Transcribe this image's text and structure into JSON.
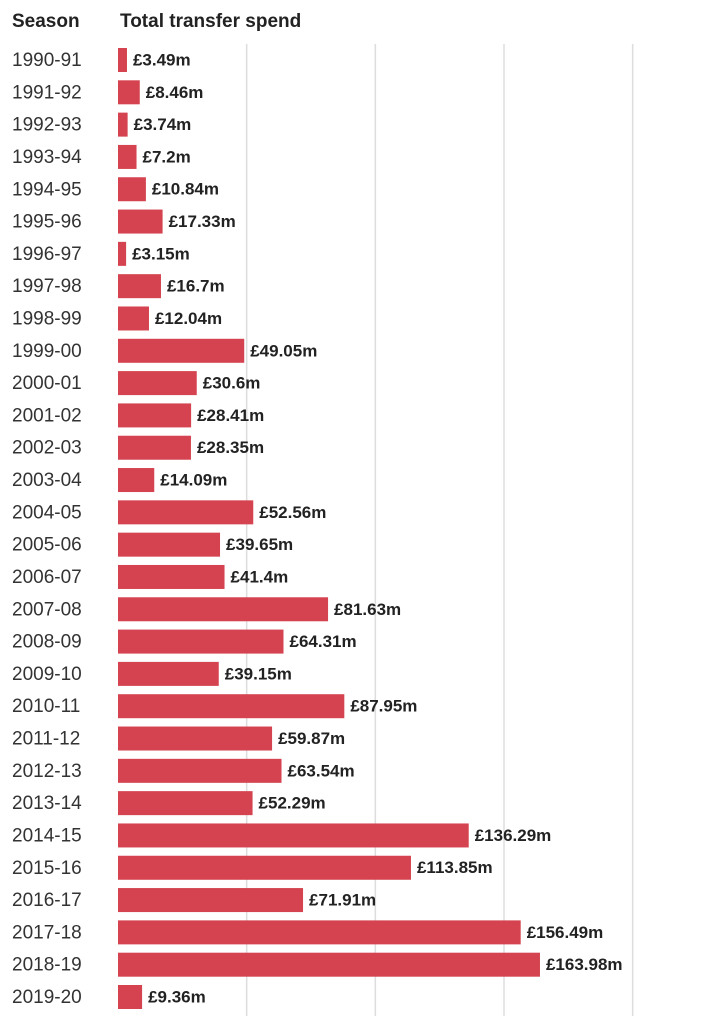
{
  "chart_data": {
    "type": "hbar",
    "category_header": "Season",
    "title": "Total transfer spend",
    "categories": [
      "1990-91",
      "1991-92",
      "1992-93",
      "1993-94",
      "1994-95",
      "1995-96",
      "1996-97",
      "1997-98",
      "1998-99",
      "1999-00",
      "2000-01",
      "2001-02",
      "2002-03",
      "2003-04",
      "2004-05",
      "2005-06",
      "2006-07",
      "2007-08",
      "2008-09",
      "2009-10",
      "2010-11",
      "2011-12",
      "2012-13",
      "2013-14",
      "2014-15",
      "2015-16",
      "2016-17",
      "2017-18",
      "2018-19",
      "2019-20"
    ],
    "values": [
      3.49,
      8.46,
      3.74,
      7.2,
      10.84,
      17.33,
      3.15,
      16.7,
      12.04,
      49.05,
      30.6,
      28.41,
      28.35,
      14.09,
      52.56,
      39.65,
      41.4,
      81.63,
      64.31,
      39.15,
      87.95,
      59.87,
      63.54,
      52.29,
      136.29,
      113.85,
      71.91,
      156.49,
      163.98,
      9.36
    ],
    "value_labels": [
      "£3.49m",
      "£8.46m",
      "£3.74m",
      "£7.2m",
      "£10.84m",
      "£17.33m",
      "£3.15m",
      "£16.7m",
      "£12.04m",
      "£49.05m",
      "£30.6m",
      "£28.41m",
      "£28.35m",
      "£14.09m",
      "£52.56m",
      "£39.65m",
      "£41.4m",
      "£81.63m",
      "£64.31m",
      "£39.15m",
      "£87.95m",
      "£59.87m",
      "£63.54m",
      "£52.29m",
      "£136.29m",
      "£113.85m",
      "£71.91m",
      "£156.49m",
      "£163.98m",
      "£9.36m"
    ],
    "color": "#d4434f",
    "xlim": [
      0,
      225
    ],
    "xticks": [
      0,
      50,
      100,
      150,
      200
    ],
    "grid": true
  }
}
